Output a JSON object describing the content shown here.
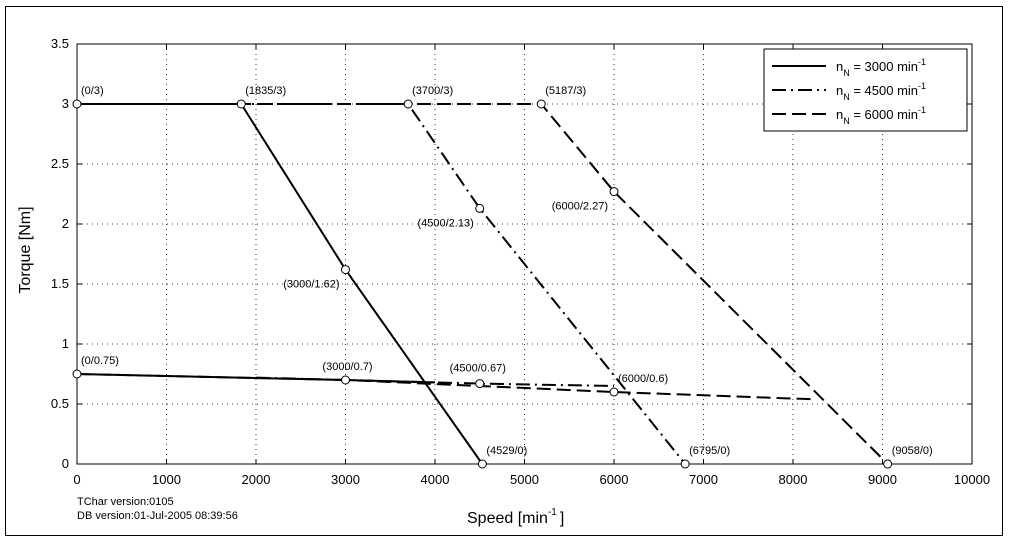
{
  "chart_data": {
    "type": "line",
    "xlabel": "Speed [min",
    "xlabel_sup": "-1",
    "xlabel_end": "]",
    "ylabel": "Torque [Nm]",
    "xlim": [
      0,
      10000
    ],
    "ylim": [
      0,
      3.5
    ],
    "x_ticks": [
      0,
      1000,
      2000,
      3000,
      4000,
      5000,
      6000,
      7000,
      8000,
      9000,
      10000
    ],
    "y_ticks": [
      0,
      0.5,
      1,
      1.5,
      2,
      2.5,
      3,
      3.5
    ],
    "y_tick_labels": [
      "0",
      "0.5",
      "1",
      "1.5",
      "2",
      "2.5",
      "3",
      "3.5"
    ],
    "grid": true,
    "legend_position": "top-right",
    "series": [
      {
        "name": "n_N = 3000 min^-1",
        "legend_main": "n",
        "legend_sub": "N",
        "legend_rest": " = 3000 min",
        "legend_sup": "-1",
        "style": "solid",
        "curves": [
          [
            [
              0,
              3
            ],
            [
              1835,
              3
            ],
            [
              3000,
              1.62
            ],
            [
              4529,
              0
            ]
          ],
          [
            [
              0,
              0.75
            ],
            [
              3000,
              0.7
            ],
            [
              4000,
              0.68
            ]
          ]
        ]
      },
      {
        "name": "n_N = 4500 min^-1",
        "legend_main": "n",
        "legend_sub": "N",
        "legend_rest": " = 4500 min",
        "legend_sup": "-1",
        "style": "dashdot",
        "curves": [
          [
            [
              0,
              3
            ],
            [
              3700,
              3
            ],
            [
              4500,
              2.13
            ],
            [
              6795,
              0
            ]
          ],
          [
            [
              2000,
              0.72
            ],
            [
              4500,
              0.67
            ],
            [
              6000,
              0.65
            ]
          ]
        ]
      },
      {
        "name": "n_N = 6000 min^-1",
        "legend_main": "n",
        "legend_sub": "N",
        "legend_rest": " = 6000 min",
        "legend_sup": "-1",
        "style": "dashed",
        "curves": [
          [
            [
              0,
              3
            ],
            [
              5187,
              3
            ],
            [
              6000,
              2.27
            ],
            [
              9058,
              0
            ]
          ],
          [
            [
              0,
              0.75
            ],
            [
              3000,
              0.7
            ],
            [
              6000,
              0.6
            ],
            [
              8200,
              0.54
            ]
          ]
        ]
      }
    ],
    "points": [
      {
        "x": 0,
        "y": 3,
        "label": "(0/3)",
        "pos": "above-right"
      },
      {
        "x": 1835,
        "y": 3,
        "label": "(1835/3)",
        "pos": "above-right"
      },
      {
        "x": 3700,
        "y": 3,
        "label": "(3700/3)",
        "pos": "above-right"
      },
      {
        "x": 5187,
        "y": 3,
        "label": "(5187/3)",
        "pos": "above-right"
      },
      {
        "x": 6000,
        "y": 2.27,
        "label": "(6000/2.27)",
        "pos": "below-left"
      },
      {
        "x": 4500,
        "y": 2.13,
        "label": "(4500/2.13)",
        "pos": "below-left"
      },
      {
        "x": 3000,
        "y": 1.62,
        "label": "(3000/1.62)",
        "pos": "below-left"
      },
      {
        "x": 0,
        "y": 0.75,
        "label": "(0/0.75)",
        "pos": "above-right"
      },
      {
        "x": 3000,
        "y": 0.7,
        "label": "(3000/0.7)",
        "pos": "above-left"
      },
      {
        "x": 4500,
        "y": 0.67,
        "label": "(4500/0.67)",
        "pos": "above-center"
      },
      {
        "x": 6000,
        "y": 0.6,
        "label": "(6000/0.6)",
        "pos": "above-right"
      },
      {
        "x": 4529,
        "y": 0,
        "label": "(4529/0)",
        "pos": "above-right"
      },
      {
        "x": 6795,
        "y": 0,
        "label": "(6795/0)",
        "pos": "above-right"
      },
      {
        "x": 9058,
        "y": 0,
        "label": "(9058/0)",
        "pos": "above-right"
      }
    ]
  },
  "footer": {
    "tchar_version": "TChar version:0105",
    "db_version": "DB version:01-Jul-2005 08:39:56"
  }
}
